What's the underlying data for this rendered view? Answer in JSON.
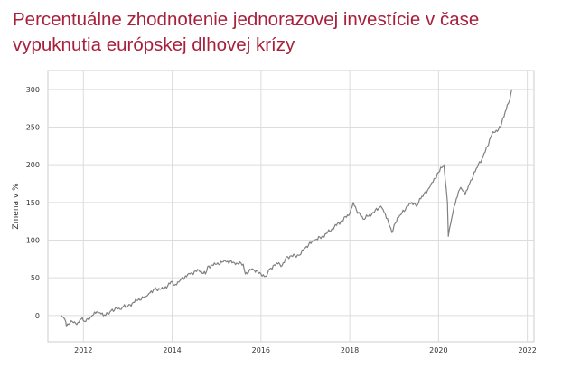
{
  "chart_data": {
    "type": "line",
    "title": "Percentuálne zhodnotenie jednorazovej investície v čase vypuknutia európskej dlhovej krízy",
    "xlabel": "",
    "ylabel": "Zmena v %",
    "xlim": [
      2011.2,
      2022.15
    ],
    "ylim": [
      -35,
      325
    ],
    "grid": true,
    "legend": "none",
    "line_color": "#808080",
    "x_ticks": [
      2012,
      2014,
      2016,
      2018,
      2020,
      2022
    ],
    "y_ticks": [
      0,
      50,
      100,
      150,
      200,
      250,
      300
    ],
    "series": [
      {
        "name": "",
        "x": [
          2011.5,
          2011.58,
          2011.62,
          2011.67,
          2011.75,
          2011.85,
          2011.95,
          2012.05,
          2012.2,
          2012.3,
          2012.4,
          2012.5,
          2012.6,
          2012.75,
          2012.85,
          2012.9,
          2013.0,
          2013.2,
          2013.4,
          2013.5,
          2013.6,
          2013.8,
          2014.0,
          2014.05,
          2014.2,
          2014.4,
          2014.6,
          2014.75,
          2014.8,
          2015.0,
          2015.2,
          2015.4,
          2015.6,
          2015.65,
          2015.8,
          2016.0,
          2016.1,
          2016.2,
          2016.4,
          2016.45,
          2016.6,
          2016.85,
          2017.0,
          2017.2,
          2017.4,
          2017.6,
          2017.8,
          2018.0,
          2018.08,
          2018.15,
          2018.3,
          2018.5,
          2018.7,
          2018.8,
          2018.95,
          2019.0,
          2019.1,
          2019.3,
          2019.4,
          2019.5,
          2019.6,
          2019.8,
          2020.0,
          2020.12,
          2020.2,
          2020.22,
          2020.3,
          2020.4,
          2020.5,
          2020.6,
          2020.7,
          2020.75,
          2020.85,
          2021.0,
          2021.2,
          2021.4,
          2021.5,
          2021.6,
          2021.65
        ],
        "y": [
          0,
          -5,
          -15,
          -12,
          -8,
          -12,
          -5,
          -8,
          0,
          5,
          2,
          0,
          5,
          10,
          8,
          12,
          12,
          20,
          25,
          30,
          35,
          35,
          45,
          40,
          48,
          55,
          60,
          55,
          65,
          68,
          72,
          70,
          68,
          55,
          62,
          55,
          52,
          62,
          70,
          65,
          78,
          80,
          90,
          100,
          105,
          115,
          125,
          135,
          150,
          140,
          128,
          135,
          145,
          135,
          110,
          120,
          130,
          145,
          150,
          145,
          155,
          170,
          190,
          200,
          150,
          105,
          130,
          155,
          170,
          160,
          175,
          180,
          195,
          210,
          240,
          250,
          270,
          285,
          300
        ]
      }
    ]
  }
}
